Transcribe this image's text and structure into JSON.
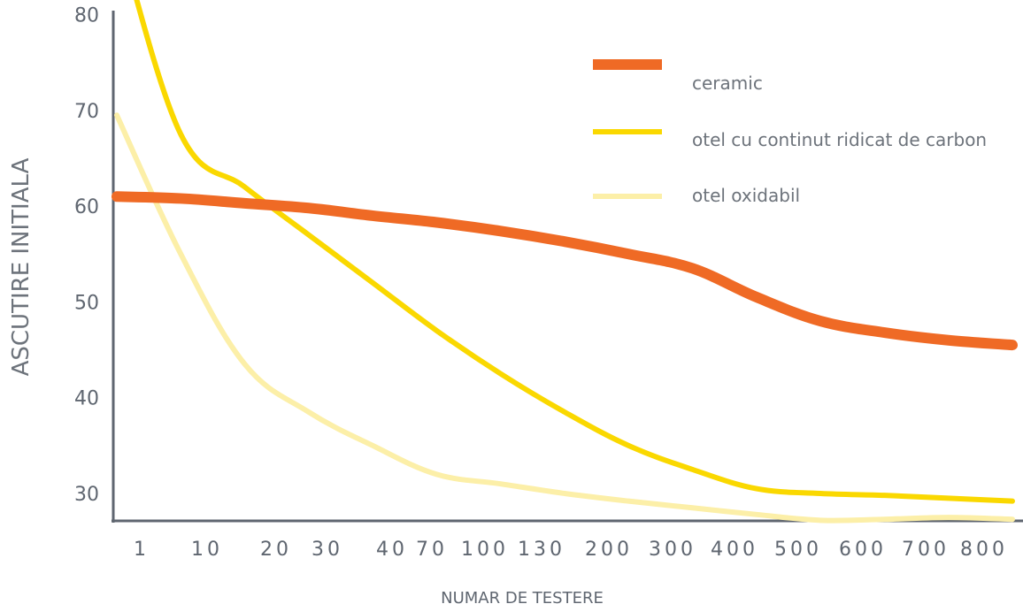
{
  "chart_data": {
    "type": "line",
    "title": "",
    "xlabel": "NUMAR DE TESTERE",
    "ylabel": "ASCUTIRE INITIALA",
    "categories": [
      "1",
      "10",
      "20",
      "30",
      "40",
      "70",
      "100",
      "130",
      "200",
      "300",
      "400",
      "500",
      "600",
      "700",
      "800"
    ],
    "ylim": [
      27,
      102
    ],
    "yticks": [
      30,
      40,
      50,
      60,
      70,
      80,
      90,
      100
    ],
    "grid": false,
    "legend_position": "top-right",
    "series": [
      {
        "name": "ceramic",
        "color": "#ef6a25",
        "values": [
          61,
          60.8,
          60.3,
          59.8,
          59,
          58.3,
          57.4,
          56.3,
          55,
          53.5,
          50.5,
          48,
          46.8,
          46,
          45.5
        ]
      },
      {
        "name": "otel cu continut ridicat de carbon",
        "color": "#fad800",
        "values": [
          89,
          67.5,
          62,
          57,
          52,
          47,
          42.5,
          38.5,
          35,
          32.5,
          30.5,
          30,
          29.8,
          29.5,
          29.2
        ]
      },
      {
        "name": "otel oxidabil",
        "color": "#fcefa8",
        "values": [
          69.5,
          55,
          43.5,
          38.5,
          35,
          32,
          31,
          30,
          29.2,
          28.5,
          27.8,
          27.2,
          27.3,
          27.5,
          27.3
        ]
      }
    ]
  }
}
